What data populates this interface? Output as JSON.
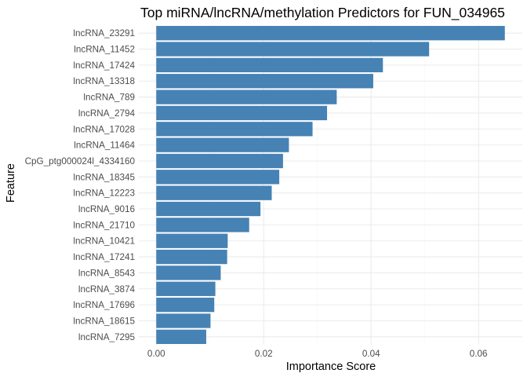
{
  "chart_data": {
    "type": "bar",
    "orientation": "horizontal",
    "title": "Top miRNA/lncRNA/methylation Predictors for FUN_034965",
    "xlabel": "Importance Score",
    "ylabel": "Feature",
    "categories": [
      "lncRNA_23291",
      "lncRNA_11452",
      "lncRNA_17424",
      "lncRNA_13318",
      "lncRNA_789",
      "lncRNA_2794",
      "lncRNA_17028",
      "lncRNA_11464",
      "CpG_ptg000024l_4334160",
      "lncRNA_18345",
      "lncRNA_12223",
      "lncRNA_9016",
      "lncRNA_21710",
      "lncRNA_10421",
      "lncRNA_17241",
      "lncRNA_8543",
      "lncRNA_3874",
      "lncRNA_17696",
      "lncRNA_18615",
      "lncRNA_7295"
    ],
    "values": [
      0.0649,
      0.0508,
      0.0422,
      0.0404,
      0.0336,
      0.0318,
      0.0291,
      0.0247,
      0.0236,
      0.0229,
      0.0215,
      0.0194,
      0.0173,
      0.0133,
      0.0132,
      0.012,
      0.011,
      0.0108,
      0.0101,
      0.0093
    ],
    "xticks": [
      "0.00",
      "0.02",
      "0.04",
      "0.06"
    ],
    "xlim": [
      -0.00325,
      0.06815
    ],
    "bar_color": "#4682b4",
    "grid": true
  }
}
